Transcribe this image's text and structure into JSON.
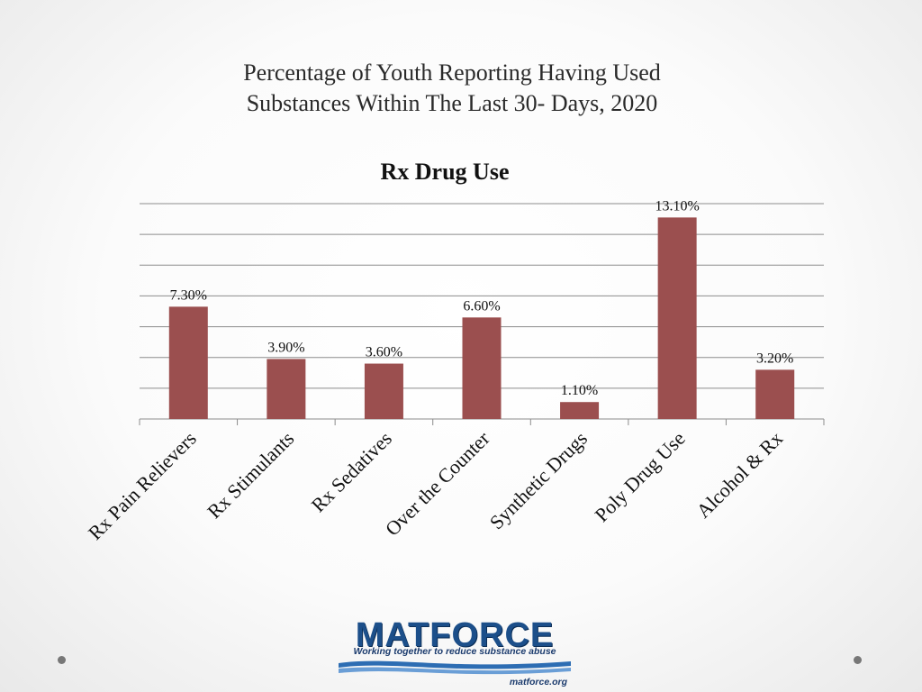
{
  "slide": {
    "title_line1": "Percentage of Youth Reporting Having Used",
    "title_line2": "Substances Within The Last 30- Days, 2020"
  },
  "chart_data": {
    "type": "bar",
    "title": "Rx Drug Use",
    "categories": [
      "Rx Pain Relievers",
      "Rx Stimulants",
      "Rx Sedatives",
      "Over the Counter",
      "Synthetic Drugs",
      "Poly Drug Use",
      "Alcohol & Rx"
    ],
    "values": [
      7.3,
      3.9,
      3.6,
      6.6,
      1.1,
      13.1,
      3.2
    ],
    "data_labels": [
      "7.30%",
      "3.90%",
      "3.60%",
      "6.60%",
      "1.10%",
      "13.10%",
      "3.20%"
    ],
    "ylim": [
      0,
      14
    ],
    "grid": true,
    "legend": "none",
    "bar_color": "#9b4f4f",
    "xlabel": "",
    "ylabel": ""
  },
  "logo": {
    "name": "MATFORCE",
    "tagline": "Working together to reduce substance abuse",
    "url": "matforce.org",
    "brand_color": "#1c4f8a"
  }
}
